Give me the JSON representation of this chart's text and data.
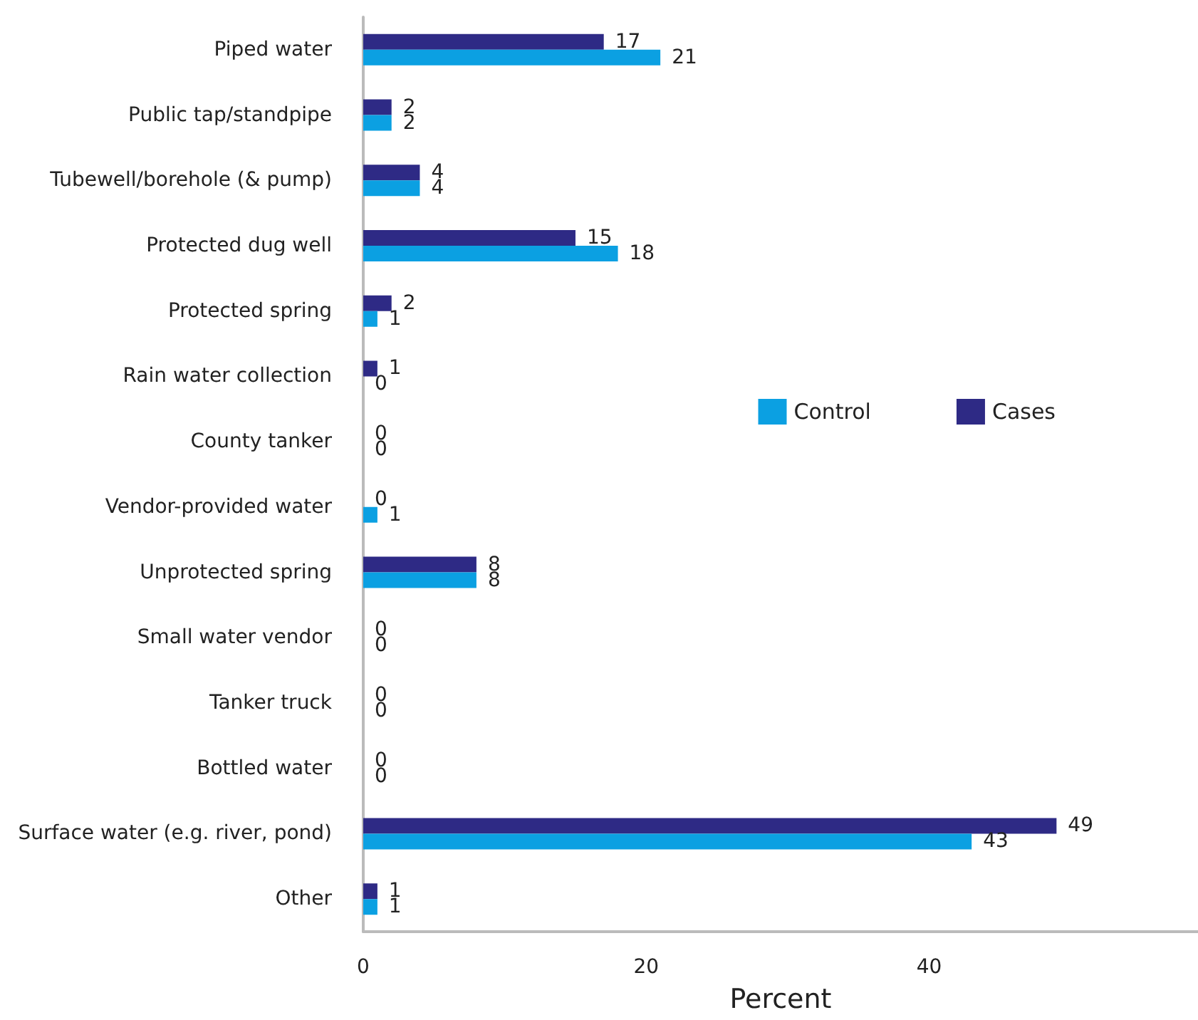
{
  "chart_data": {
    "type": "bar",
    "orientation": "horizontal",
    "xlabel": "Percent",
    "categories": [
      "Piped water",
      "Public tap/standpipe",
      "Tubewell/borehole (& pump)",
      "Protected dug well",
      "Protected spring",
      "Rain water collection",
      "County tanker",
      "Vendor-provided water",
      "Unprotected spring",
      "Small water vendor",
      "Tanker truck",
      "Bottled water",
      "Surface water (e.g. river, pond)",
      "Other"
    ],
    "series": [
      {
        "name": "Cases",
        "color": "#2e2a85",
        "values": [
          17,
          2,
          4,
          15,
          2,
          1,
          0,
          0,
          8,
          0,
          0,
          0,
          49,
          1
        ]
      },
      {
        "name": "Control",
        "color": "#0ba0e2",
        "values": [
          21,
          2,
          4,
          18,
          1,
          0,
          0,
          1,
          8,
          0,
          0,
          0,
          43,
          1
        ]
      }
    ],
    "xlim": [
      0,
      59
    ],
    "xticks": [
      0,
      20,
      40
    ],
    "grid": false,
    "legend": "right",
    "data_labels": true
  }
}
